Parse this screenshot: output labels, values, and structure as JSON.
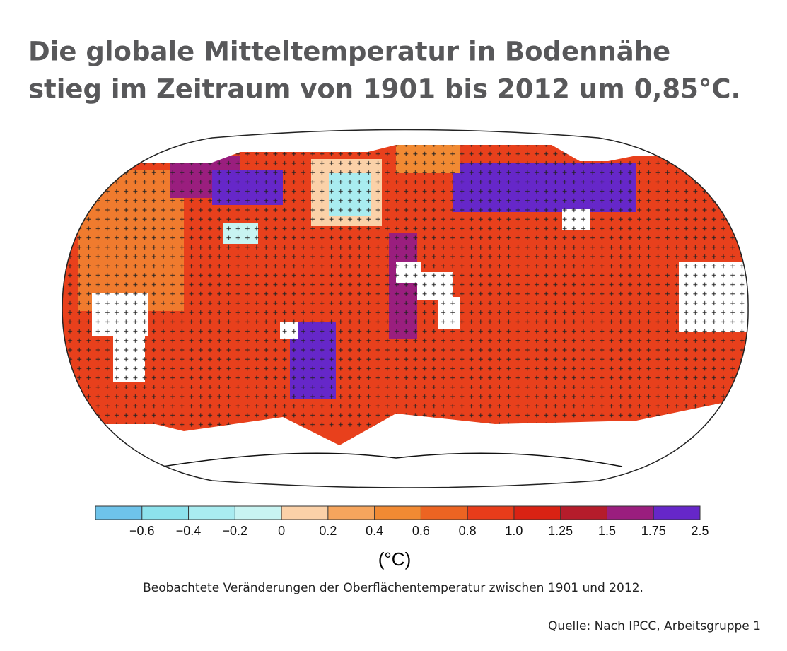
{
  "title": [
    "Die globale Mitteltemperatur in Bodennähe",
    "stieg im Zeitraum von 1901 bis 2012 um 0,85°C."
  ],
  "colorbar": {
    "colors": [
      "#6ec3ea",
      "#8de2ec",
      "#a9ecf0",
      "#c8f4f2",
      "#fbd1a8",
      "#f6a55d",
      "#f18a33",
      "#ec6422",
      "#e83c1a",
      "#d92213",
      "#b51c2b",
      "#9a1e7e",
      "#6627c9"
    ],
    "ticks": [
      {
        "value": -0.6,
        "label": "−0.6"
      },
      {
        "value": -0.4,
        "label": "−0.4"
      },
      {
        "value": -0.2,
        "label": "−0.2"
      },
      0,
      0.2,
      0.4,
      0.6,
      0.8,
      {
        "value": 1,
        "label": "1.0"
      },
      1.25,
      1.5,
      1.75,
      2.5
    ],
    "unit": "(°C)"
  },
  "caption": "Beobachtete Veränderungen der Oberflächentemperatur zwischen 1901 und 2012.",
  "source": "Quelle: Nach IPCC, Arbeitsgruppe 1"
}
